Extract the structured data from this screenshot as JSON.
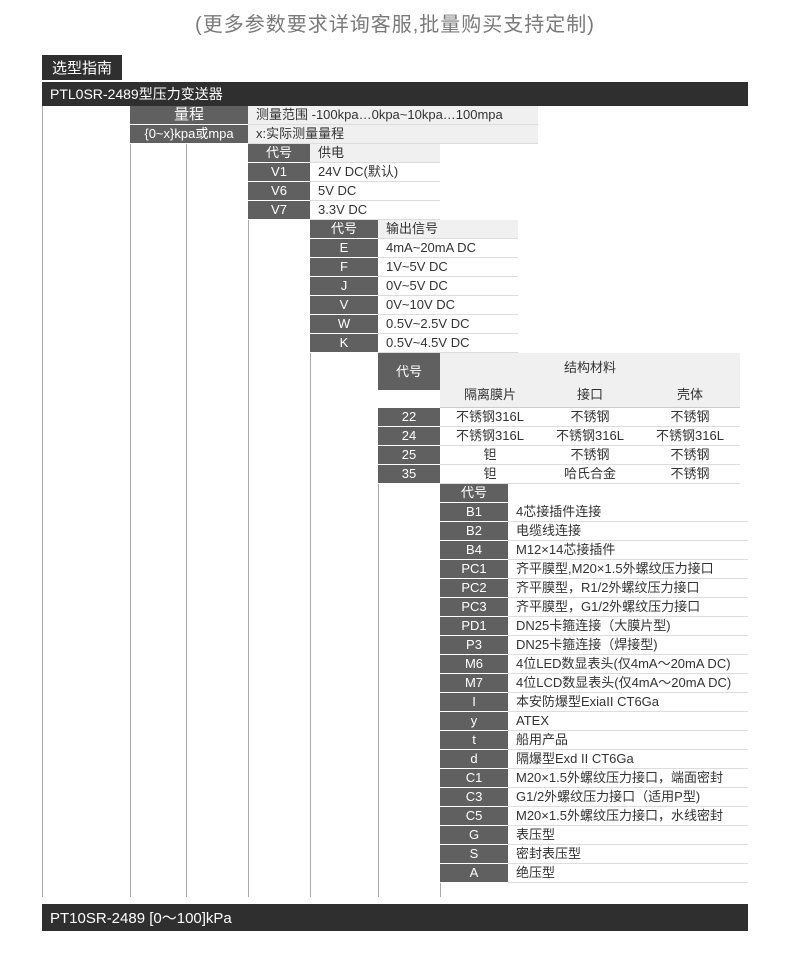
{
  "subtitle": "(更多参数要求详询客服,批量购买支持定制)",
  "section_tab": "选型指南",
  "model_bar": "PTL0SR-2489型压力变送器",
  "range": {
    "code": "量程",
    "desc": "测量范围  -100kpa…0kpa~10kpa…100mpa",
    "sub_code": "{0~x}kpa或mpa",
    "sub_desc": "x:实际测量量程"
  },
  "power": {
    "header_code": "代号",
    "header_desc": "供电",
    "rows": [
      {
        "code": "V1",
        "desc": "24V DC(默认)"
      },
      {
        "code": "V6",
        "desc": "5V DC"
      },
      {
        "code": "V7",
        "desc": "3.3V DC"
      }
    ]
  },
  "output": {
    "header_code": "代号",
    "header_desc": "输出信号",
    "rows": [
      {
        "code": "E",
        "desc": "4mA~20mA DC"
      },
      {
        "code": "F",
        "desc": "1V~5V DC"
      },
      {
        "code": "J",
        "desc": "0V~5V DC"
      },
      {
        "code": "V",
        "desc": "0V~10V DC"
      },
      {
        "code": "W",
        "desc": "0.5V~2.5V DC"
      },
      {
        "code": "K",
        "desc": "0.5V~4.5V DC"
      }
    ]
  },
  "materials": {
    "header_code": "代号",
    "header_group": "结构材料",
    "cols": [
      "隔离膜片",
      "接口",
      "壳体"
    ],
    "rows": [
      {
        "code": "22",
        "vals": [
          "不锈钢316L",
          "不锈钢",
          "不锈钢"
        ]
      },
      {
        "code": "24",
        "vals": [
          "不锈钢316L",
          "不锈钢316L",
          "不锈钢316L"
        ]
      },
      {
        "code": "25",
        "vals": [
          "钽",
          "不锈钢",
          "不锈钢"
        ]
      },
      {
        "code": "35",
        "vals": [
          "钽",
          "哈氏合金",
          "不锈钢"
        ]
      }
    ]
  },
  "options": {
    "header_code": "代号",
    "rows": [
      {
        "code": "B1",
        "desc": "4芯接插件连接"
      },
      {
        "code": "B2",
        "desc": "电缆线连接"
      },
      {
        "code": "B4",
        "desc": "M12×14芯接插件"
      },
      {
        "code": "PC1",
        "desc": "齐平膜型,M20×1.5外螺纹压力接口"
      },
      {
        "code": "PC2",
        "desc": "齐平膜型，R1/2外螺纹压力接口"
      },
      {
        "code": "PC3",
        "desc": "齐平膜型，G1/2外螺纹压力接口"
      },
      {
        "code": "PD1",
        "desc": "DN25卡箍连接（大膜片型)"
      },
      {
        "code": "P3",
        "desc": "DN25卡箍连接（焊接型)"
      },
      {
        "code": "M6",
        "desc": "4位LED数显表头(仅4mA～20mA DC)"
      },
      {
        "code": "M7",
        "desc": "4位LCD数显表头(仅4mA～20mA DC)"
      },
      {
        "code": "I",
        "desc": "本安防爆型ExiaII CT6Ga"
      },
      {
        "code": "y",
        "desc": "ATEX"
      },
      {
        "code": "t",
        "desc": "船用产品"
      },
      {
        "code": "d",
        "desc": "隔爆型Exd II CT6Ga"
      },
      {
        "code": "C1",
        "desc": "M20×1.5外螺纹压力接口，端面密封"
      },
      {
        "code": "C3",
        "desc": "G1/2外螺纹压力接口（适用P型)"
      },
      {
        "code": "C5",
        "desc": "M20×1.5外螺纹压力接口，水线密封"
      },
      {
        "code": "G",
        "desc": "表压型"
      },
      {
        "code": "S",
        "desc": "密封表压型"
      },
      {
        "code": "A",
        "desc": "绝压型"
      }
    ]
  },
  "footer": "PT10SR-2489 [0～100]kPa",
  "colors": {
    "code_bg": "#606060",
    "bar_bg": "#2f2f2f",
    "header_bg": "#f0f0f0"
  }
}
